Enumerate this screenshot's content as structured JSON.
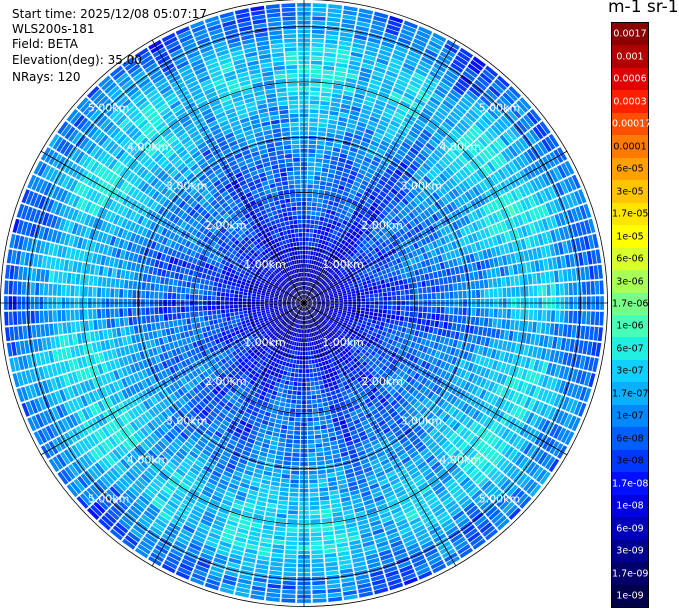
{
  "info": {
    "start_time": "Start time: 2025/12/08 05:07:17",
    "instrument": "WLS200s-181",
    "field": "Field: BETA",
    "elevation": "Elevation(deg): 35.00",
    "nrays": "NRays: 120"
  },
  "colorbar": {
    "title": "m-1 sr-1",
    "labels": [
      "0.0017",
      "0.001",
      "0.0006",
      "0.0003",
      "0.00017",
      "0.0001",
      "6e-05",
      "3e-05",
      "1.7e-05",
      "1e-05",
      "6e-06",
      "3e-06",
      "1.7e-06",
      "1e-06",
      "6e-07",
      "3e-07",
      "1.7e-07",
      "1e-07",
      "6e-08",
      "3e-08",
      "1.7e-08",
      "1e-08",
      "6e-09",
      "3e-09",
      "1.7e-09",
      "1e-09"
    ],
    "colors": [
      "#8b0000",
      "#b00000",
      "#e00000",
      "#ff2000",
      "#ff5000",
      "#ff7a00",
      "#ffa000",
      "#ffc400",
      "#ffe400",
      "#ffff00",
      "#d8ff2a",
      "#a8ff58",
      "#78ff88",
      "#48ffb8",
      "#20f0e0",
      "#10d0ff",
      "#08b0ff",
      "#0088ff",
      "#0060ff",
      "#0038ff",
      "#0010ff",
      "#0000e0",
      "#0000b8",
      "#000090",
      "#000068",
      "#00004a"
    ],
    "text_colors": [
      "#ffffff",
      "#ffffff",
      "#ffffff",
      "#ffffff",
      "#ffffff",
      "#000000",
      "#000000",
      "#000000",
      "#000000",
      "#000000",
      "#000000",
      "#000000",
      "#000000",
      "#000000",
      "#000000",
      "#000000",
      "#000000",
      "#000000",
      "#000000",
      "#000000",
      "#ffffff",
      "#ffffff",
      "#ffffff",
      "#ffffff",
      "#ffffff",
      "#ffffff"
    ]
  },
  "chart_data": {
    "type": "heatmap",
    "projection": "polar",
    "nrays": 120,
    "range_km_max": 5.5,
    "range_rings_km": [
      1,
      2,
      3,
      4,
      5
    ],
    "ring_labels": [
      "1.00km",
      "2.00km",
      "3.00km",
      "4.00km",
      "5.00km"
    ],
    "ring_label_angles_deg": [
      45,
      135,
      225,
      315
    ],
    "backscatter_profile": {
      "range_km": [
        0.0,
        0.5,
        1.0,
        1.5,
        2.0,
        2.5,
        3.0,
        3.5,
        4.0,
        4.5,
        5.0,
        5.5
      ],
      "beta_m-1_sr-1": [
        1e-09,
        6e-09,
        1.7e-08,
        3e-08,
        6e-08,
        6e-08,
        1e-07,
        1.7e-07,
        3e-07,
        3e-07,
        1e-07,
        6e-08
      ]
    }
  }
}
